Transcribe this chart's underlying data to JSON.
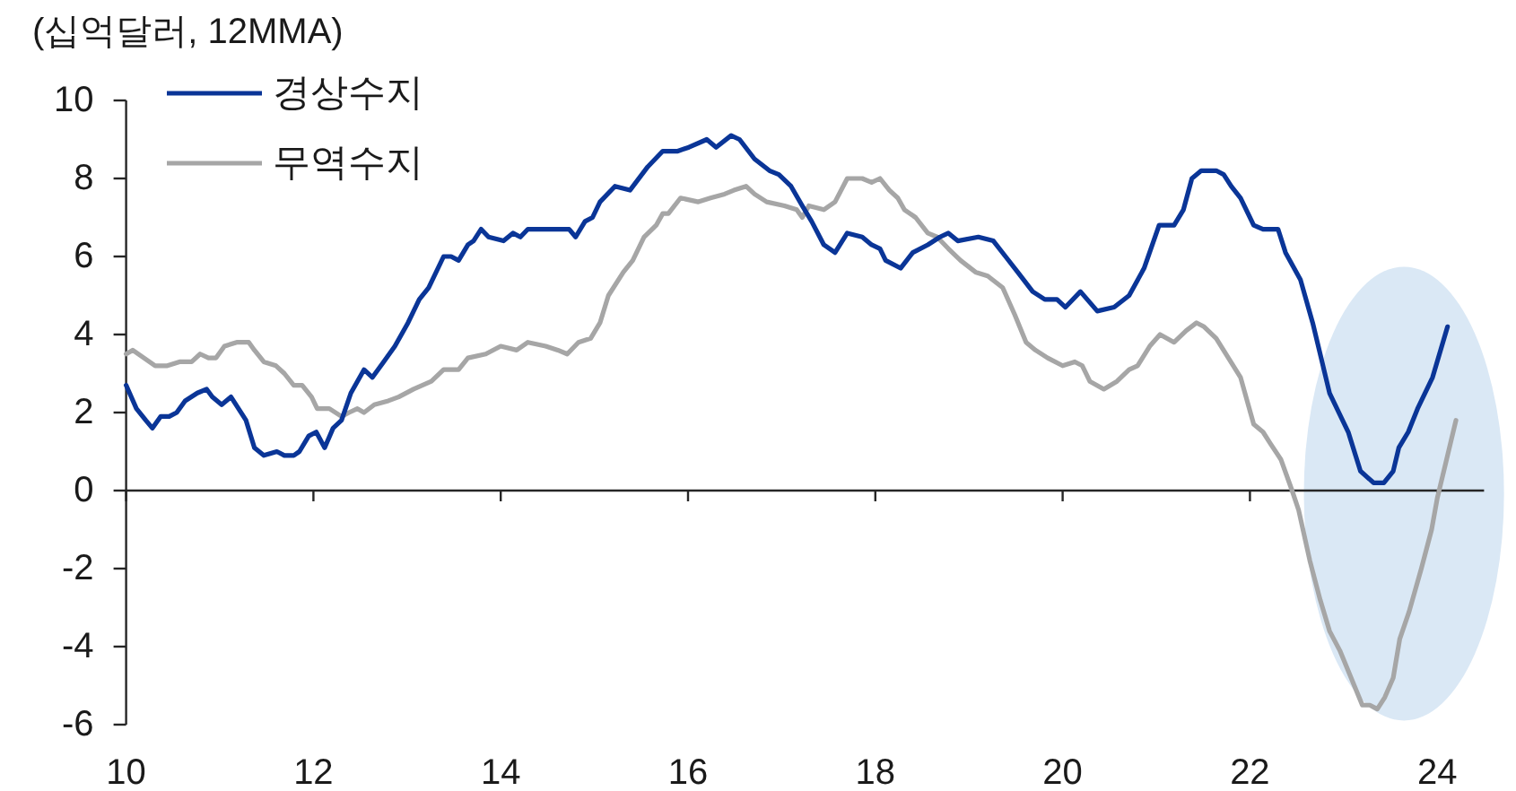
{
  "chart_data": {
    "type": "line",
    "ylabel": "(십억달러, 12MMA)",
    "xlim": [
      10,
      24.5
    ],
    "xticks": [
      10,
      12,
      14,
      16,
      18,
      20,
      22,
      24
    ],
    "ylim": [
      -6,
      10
    ],
    "yticks": [
      -6,
      -4,
      -2,
      0,
      2,
      4,
      6,
      8,
      10
    ],
    "legend": "top left",
    "series": [
      {
        "name": "경상수지",
        "color": "#0a3597",
        "x": [
          10.0,
          10.11,
          10.21,
          10.28,
          10.37,
          10.46,
          10.54,
          10.63,
          10.76,
          10.86,
          10.92,
          11.02,
          11.12,
          11.2,
          11.28,
          11.37,
          11.47,
          11.61,
          11.69,
          11.79,
          11.85,
          11.95,
          12.03,
          12.12,
          12.21,
          12.3,
          12.4,
          12.54,
          12.63,
          12.75,
          12.87,
          13.01,
          13.13,
          13.23,
          13.39,
          13.47,
          13.55,
          13.65,
          13.71,
          13.79,
          13.87,
          14.03,
          14.13,
          14.21,
          14.29,
          14.45,
          14.68,
          14.73,
          14.8,
          14.9,
          14.98,
          15.06,
          15.22,
          15.38,
          15.57,
          15.73,
          15.89,
          16.01,
          16.2,
          16.3,
          16.46,
          16.55,
          16.71,
          16.87,
          16.97,
          17.1,
          17.22,
          17.32,
          17.45,
          17.57,
          17.7,
          17.86,
          17.96,
          18.05,
          18.11,
          18.27,
          18.4,
          18.56,
          18.69,
          18.78,
          18.88,
          19.1,
          19.26,
          19.39,
          19.52,
          19.68,
          19.81,
          19.94,
          20.03,
          20.19,
          20.37,
          20.55,
          20.71,
          20.87,
          21.03,
          21.19,
          21.29,
          21.38,
          21.48,
          21.64,
          21.72,
          21.8,
          21.9,
          22.04,
          22.14,
          22.3,
          22.38,
          22.54,
          22.67,
          22.85,
          23.05,
          23.18,
          23.32,
          23.43,
          23.53,
          23.59,
          23.69,
          23.79,
          23.95,
          24.11
        ],
        "values": [
          2.7,
          2.1,
          1.8,
          1.6,
          1.9,
          1.9,
          2.0,
          2.3,
          2.5,
          2.6,
          2.4,
          2.2,
          2.4,
          2.1,
          1.8,
          1.1,
          0.9,
          1.0,
          0.9,
          0.9,
          1.0,
          1.4,
          1.5,
          1.1,
          1.6,
          1.8,
          2.5,
          3.1,
          2.9,
          3.3,
          3.7,
          4.3,
          4.9,
          5.2,
          6.0,
          6.0,
          5.9,
          6.3,
          6.4,
          6.7,
          6.5,
          6.4,
          6.6,
          6.5,
          6.7,
          6.7,
          6.7,
          6.7,
          6.5,
          6.9,
          7.0,
          7.4,
          7.8,
          7.7,
          8.3,
          8.7,
          8.7,
          8.8,
          9.0,
          8.8,
          9.1,
          9.0,
          8.5,
          8.2,
          8.1,
          7.8,
          7.3,
          6.9,
          6.3,
          6.1,
          6.6,
          6.5,
          6.3,
          6.2,
          5.9,
          5.7,
          6.1,
          6.3,
          6.5,
          6.6,
          6.4,
          6.5,
          6.4,
          6.0,
          5.6,
          5.1,
          4.9,
          4.9,
          4.7,
          5.1,
          4.6,
          4.7,
          5.0,
          5.7,
          6.8,
          6.8,
          7.2,
          8.0,
          8.2,
          8.2,
          8.1,
          7.8,
          7.5,
          6.8,
          6.7,
          6.7,
          6.1,
          5.4,
          4.3,
          2.5,
          1.5,
          0.5,
          0.2,
          0.2,
          0.5,
          1.1,
          1.5,
          2.1,
          2.9,
          4.2
        ]
      },
      {
        "name": "무역수지",
        "color": "#a6a6a6",
        "x": [
          10.0,
          10.07,
          10.19,
          10.31,
          10.44,
          10.57,
          10.7,
          10.79,
          10.88,
          10.96,
          11.05,
          11.18,
          11.31,
          11.37,
          11.47,
          11.6,
          11.69,
          11.79,
          11.88,
          11.98,
          12.04,
          12.17,
          12.3,
          12.38,
          12.47,
          12.54,
          12.65,
          12.8,
          12.91,
          13.07,
          13.26,
          13.39,
          13.55,
          13.65,
          13.84,
          14.0,
          14.17,
          14.29,
          14.48,
          14.61,
          14.71,
          14.83,
          14.96,
          15.06,
          15.15,
          15.31,
          15.41,
          15.53,
          15.66,
          15.73,
          15.79,
          15.92,
          16.11,
          16.24,
          16.39,
          16.49,
          16.62,
          16.71,
          16.84,
          17.03,
          17.16,
          17.22,
          17.29,
          17.45,
          17.57,
          17.7,
          17.86,
          17.96,
          18.05,
          18.15,
          18.24,
          18.31,
          18.43,
          18.56,
          18.66,
          18.78,
          18.91,
          19.07,
          19.2,
          19.36,
          19.49,
          19.61,
          19.71,
          19.84,
          20.0,
          20.13,
          20.21,
          20.29,
          20.44,
          20.58,
          20.71,
          20.8,
          20.93,
          21.04,
          21.19,
          21.32,
          21.43,
          21.51,
          21.64,
          21.77,
          21.9,
          22.04,
          22.14,
          22.22,
          22.33,
          22.45,
          22.52,
          22.64,
          22.75,
          22.85,
          22.96,
          23.08,
          23.2,
          23.28,
          23.36,
          23.44,
          23.53,
          23.6,
          23.7,
          23.83,
          23.94,
          24.0,
          24.09,
          24.2
        ],
        "values": [
          3.5,
          3.6,
          3.4,
          3.2,
          3.2,
          3.3,
          3.3,
          3.5,
          3.4,
          3.4,
          3.7,
          3.8,
          3.8,
          3.6,
          3.3,
          3.2,
          3.0,
          2.7,
          2.7,
          2.4,
          2.1,
          2.1,
          1.9,
          2.0,
          2.1,
          2.0,
          2.2,
          2.3,
          2.4,
          2.6,
          2.8,
          3.1,
          3.1,
          3.4,
          3.5,
          3.7,
          3.6,
          3.8,
          3.7,
          3.6,
          3.5,
          3.8,
          3.9,
          4.3,
          5.0,
          5.6,
          5.9,
          6.5,
          6.8,
          7.1,
          7.1,
          7.5,
          7.4,
          7.5,
          7.6,
          7.7,
          7.8,
          7.6,
          7.4,
          7.3,
          7.2,
          7.0,
          7.3,
          7.2,
          7.4,
          8.0,
          8.0,
          7.9,
          8.0,
          7.7,
          7.5,
          7.2,
          7.0,
          6.6,
          6.5,
          6.2,
          5.9,
          5.6,
          5.5,
          5.2,
          4.5,
          3.8,
          3.6,
          3.4,
          3.2,
          3.3,
          3.2,
          2.8,
          2.6,
          2.8,
          3.1,
          3.2,
          3.7,
          4.0,
          3.8,
          4.1,
          4.3,
          4.2,
          3.9,
          3.4,
          2.9,
          1.7,
          1.5,
          1.2,
          0.8,
          0.0,
          -0.5,
          -1.8,
          -2.8,
          -3.6,
          -4.1,
          -4.8,
          -5.5,
          -5.5,
          -5.6,
          -5.3,
          -4.8,
          -3.8,
          -3.1,
          -2.0,
          -1.0,
          -0.2,
          0.7,
          1.8
        ]
      }
    ]
  }
}
